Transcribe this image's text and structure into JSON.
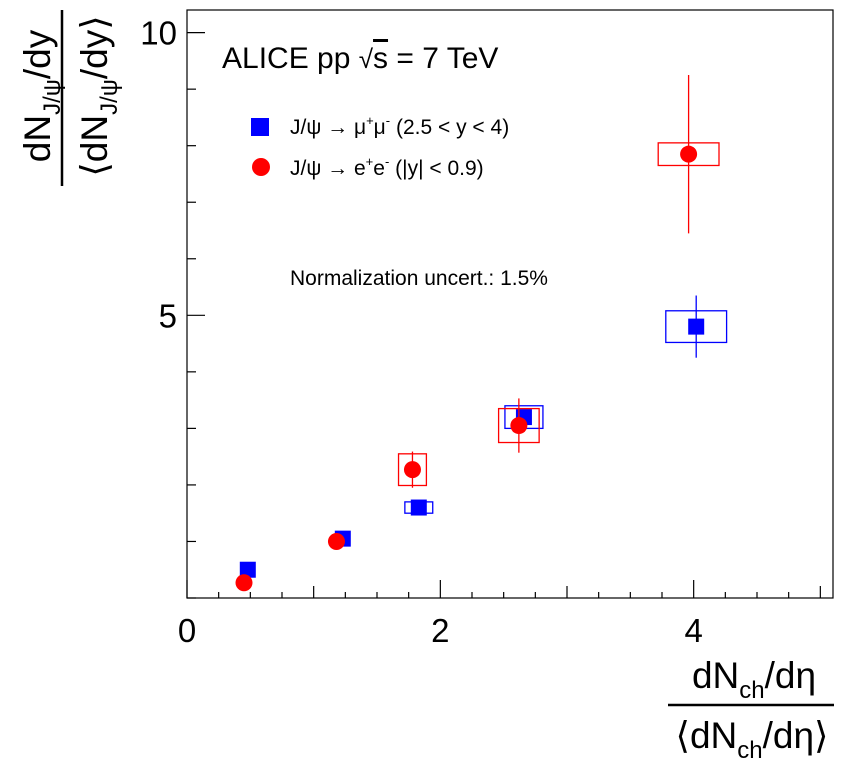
{
  "chart_data": {
    "type": "scatter",
    "title": "ALICE pp √s = 7 TeV",
    "title_parts": {
      "prefix": "ALICE pp ",
      "sqrt": "√",
      "var": "s",
      "suffix": " = 7 TeV"
    },
    "xlim": [
      0,
      5.1
    ],
    "ylim": [
      0,
      10.4
    ],
    "x_ticks": [
      0,
      2,
      4
    ],
    "y_ticks": [
      5,
      10
    ],
    "x_tick_labels": [
      "0",
      "2",
      "4"
    ],
    "y_tick_labels": [
      "5",
      "10"
    ],
    "xlabel": {
      "numerator": {
        "main": "dN",
        "sub": "ch",
        "rest": "/dη"
      },
      "denominator": {
        "open": "⟨dN",
        "sub": "ch",
        "rest": "/dη⟩"
      }
    },
    "ylabel": {
      "numerator": {
        "main": "dN",
        "sub": "J/ψ",
        "rest": "/dy"
      },
      "denominator": {
        "open": "⟨dN",
        "sub": "J/ψ",
        "rest": "/dy⟩"
      }
    },
    "annotation": "Normalization uncert.: 1.5%",
    "legend_position": "top-left",
    "series": [
      {
        "name": "J/ψ → μ⁺μ⁻ (2.5 < y < 4)",
        "marker": "square",
        "color": "#0000ff",
        "points": [
          {
            "x": 0.48,
            "y": 0.5,
            "yerr": 0.04,
            "sys_x": 0.0,
            "sys_y": 0.0
          },
          {
            "x": 1.23,
            "y": 1.05,
            "yerr": 0.05,
            "sys_x": 0.0,
            "sys_y": 0.0
          },
          {
            "x": 1.83,
            "y": 1.6,
            "yerr": 0.06,
            "sys_x": 0.11,
            "sys_y": 0.1
          },
          {
            "x": 2.66,
            "y": 3.2,
            "yerr": 0.12,
            "sys_x": 0.15,
            "sys_y": 0.2
          },
          {
            "x": 4.02,
            "y": 4.8,
            "yerr": 0.55,
            "sys_x": 0.24,
            "sys_y": 0.28
          }
        ]
      },
      {
        "name": "J/ψ → e⁺e⁻ (|y| < 0.9)",
        "marker": "circle",
        "color": "#ff0000",
        "points": [
          {
            "x": 0.45,
            "y": 0.27,
            "yerr": 0.05,
            "sys_x": 0.0,
            "sys_y": 0.0
          },
          {
            "x": 1.18,
            "y": 1.0,
            "yerr": 0.06,
            "sys_x": 0.0,
            "sys_y": 0.0
          },
          {
            "x": 1.78,
            "y": 2.27,
            "yerr": 0.32,
            "sys_x": 0.11,
            "sys_y": 0.28
          },
          {
            "x": 2.62,
            "y": 3.05,
            "yerr": 0.48,
            "sys_x": 0.16,
            "sys_y": 0.3
          },
          {
            "x": 3.96,
            "y": 7.85,
            "yerr": 1.4,
            "sys_x": 0.24,
            "sys_y": 0.2
          }
        ]
      }
    ],
    "legend": [
      {
        "marker": "square",
        "color": "#0000ff",
        "parts": {
          "a": "J/ψ → μ",
          "sup1": "+",
          "b": "μ",
          "sup2": "-",
          "c": " (2.5 < y < 4)"
        }
      },
      {
        "marker": "circle",
        "color": "#ff0000",
        "parts": {
          "a": "J/ψ → e",
          "sup1": "+",
          "b": "e",
          "sup2": "-",
          "c": " (|y| < 0.9)"
        }
      }
    ]
  }
}
